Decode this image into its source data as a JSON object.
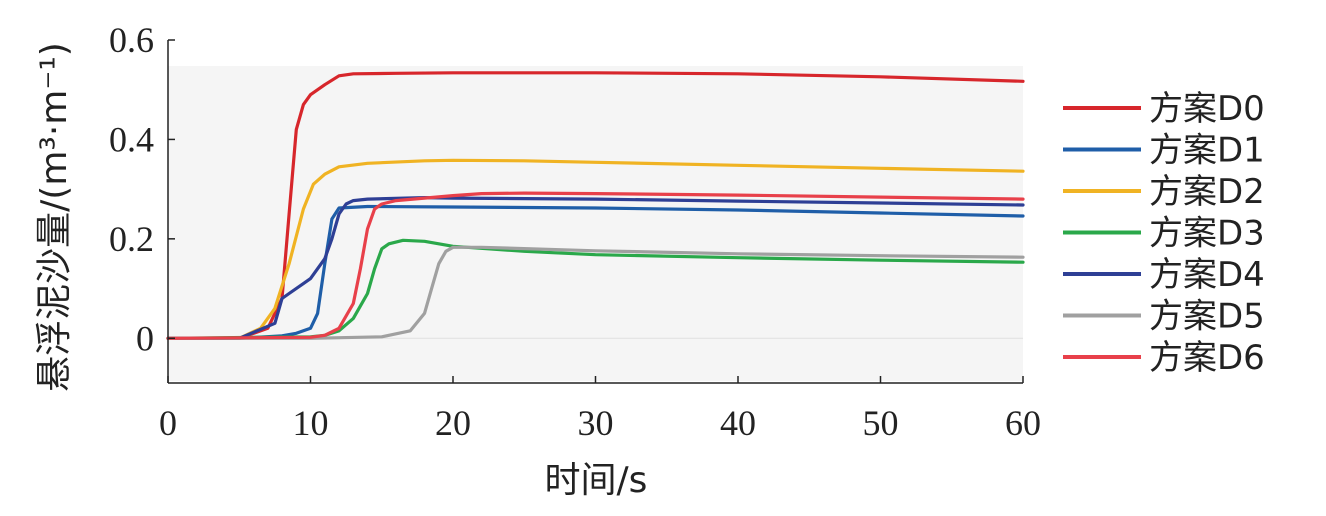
{
  "chart_data": {
    "type": "line",
    "xlabel": "时间/s",
    "ylabel": "悬浮泥沙量/(m³·m⁻¹)",
    "xlim": [
      0,
      60
    ],
    "ylim": [
      -0.09,
      0.6
    ],
    "xticks": [
      "0",
      "10",
      "20",
      "30",
      "40",
      "50",
      "60"
    ],
    "yticks": [
      "0",
      "0.2",
      "0.4",
      "0.6"
    ],
    "legend_position": "right",
    "series": [
      {
        "name": "方案D0",
        "color": "#d7262b",
        "x": [
          0,
          5,
          7,
          8,
          8.5,
          9,
          9.5,
          10,
          11,
          12,
          13,
          16,
          20,
          30,
          40,
          50,
          60
        ],
        "y": [
          0,
          0,
          0.02,
          0.08,
          0.25,
          0.42,
          0.47,
          0.49,
          0.51,
          0.528,
          0.532,
          0.533,
          0.534,
          0.534,
          0.532,
          0.526,
          0.517
        ]
      },
      {
        "name": "方案D1",
        "color": "#1f5ea8",
        "x": [
          0,
          5,
          8,
          9,
          10,
          10.5,
          11,
          11.5,
          12,
          14,
          20,
          30,
          40,
          50,
          60
        ],
        "y": [
          0,
          0,
          0.005,
          0.01,
          0.02,
          0.05,
          0.15,
          0.24,
          0.262,
          0.265,
          0.264,
          0.262,
          0.258,
          0.252,
          0.246
        ]
      },
      {
        "name": "方案D2",
        "color": "#f0b323",
        "x": [
          0,
          5,
          6.5,
          7.5,
          8.5,
          9.5,
          10.2,
          11,
          12,
          14,
          18,
          20,
          25,
          30,
          40,
          50,
          60
        ],
        "y": [
          0,
          0,
          0.02,
          0.06,
          0.15,
          0.26,
          0.31,
          0.33,
          0.345,
          0.352,
          0.357,
          0.358,
          0.357,
          0.354,
          0.348,
          0.342,
          0.336
        ]
      },
      {
        "name": "方案D3",
        "color": "#2aa84a",
        "x": [
          0,
          10,
          11,
          12,
          13,
          14,
          14.5,
          15,
          15.5,
          16.5,
          18,
          20,
          25,
          30,
          40,
          50,
          60
        ],
        "y": [
          0,
          0.003,
          0.006,
          0.015,
          0.04,
          0.09,
          0.14,
          0.18,
          0.19,
          0.197,
          0.195,
          0.185,
          0.175,
          0.168,
          0.162,
          0.157,
          0.153
        ]
      },
      {
        "name": "方案D4",
        "color": "#2e3f95",
        "x": [
          0,
          5,
          7.5,
          8,
          8.5,
          9.5,
          10,
          10.5,
          11,
          11.5,
          12,
          12.5,
          13,
          14,
          18,
          20,
          30,
          40,
          50,
          60
        ],
        "y": [
          0,
          0,
          0.03,
          0.08,
          0.09,
          0.11,
          0.12,
          0.14,
          0.16,
          0.2,
          0.25,
          0.27,
          0.277,
          0.28,
          0.283,
          0.282,
          0.28,
          0.276,
          0.272,
          0.268
        ]
      },
      {
        "name": "方案D5",
        "color": "#a0a0a0",
        "x": [
          0,
          10,
          15,
          17,
          18,
          18.5,
          19,
          19.5,
          20,
          22,
          30,
          40,
          50,
          60
        ],
        "y": [
          0,
          0,
          0.003,
          0.015,
          0.05,
          0.1,
          0.15,
          0.175,
          0.183,
          0.183,
          0.176,
          0.17,
          0.166,
          0.163
        ]
      },
      {
        "name": "方案D6",
        "color": "#e8404a",
        "x": [
          0,
          10,
          11,
          12,
          13,
          13.5,
          14,
          14.5,
          15,
          16,
          18,
          20,
          22,
          25,
          30,
          40,
          50,
          60
        ],
        "y": [
          0,
          0.002,
          0.006,
          0.02,
          0.07,
          0.14,
          0.22,
          0.26,
          0.27,
          0.277,
          0.282,
          0.287,
          0.291,
          0.292,
          0.291,
          0.288,
          0.284,
          0.28
        ]
      }
    ]
  }
}
